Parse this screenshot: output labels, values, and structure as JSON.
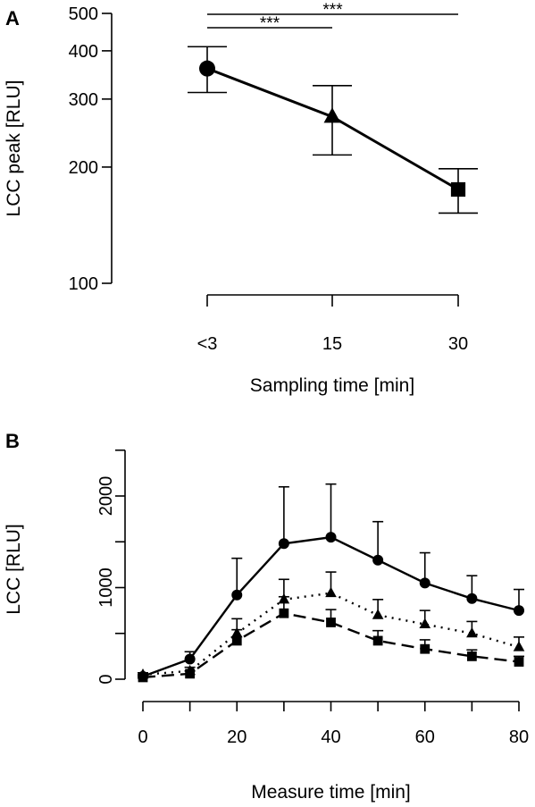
{
  "chart_data": [
    {
      "panel": "A",
      "type": "line",
      "xlabel": "Sampling time [min]",
      "ylabel": "LCC peak [RLU]",
      "yscale": "log",
      "ylim": [
        100,
        500
      ],
      "yticks": [
        100,
        200,
        300,
        400,
        500
      ],
      "categories": [
        "<3",
        "15",
        "30"
      ],
      "values": [
        360,
        270,
        175
      ],
      "error_upper": [
        410,
        325,
        198
      ],
      "error_lower": [
        312,
        215,
        152
      ],
      "markers": [
        "circle",
        "triangle",
        "square"
      ],
      "significance": [
        {
          "from": "<3",
          "to": "15",
          "label": "***"
        },
        {
          "from": "<3",
          "to": "30",
          "label": "***"
        }
      ]
    },
    {
      "panel": "B",
      "type": "line",
      "xlabel": "Measure time [min]",
      "ylabel": "LCC [RLU]",
      "xlim": [
        0,
        80
      ],
      "ylim": [
        0,
        2500
      ],
      "xticks": [
        0,
        20,
        40,
        60,
        80
      ],
      "yticks": [
        0,
        1000,
        2000
      ],
      "x": [
        0,
        10,
        20,
        30,
        40,
        50,
        60,
        70,
        80
      ],
      "series": [
        {
          "marker": "circle",
          "line": "solid",
          "values": [
            30,
            220,
            920,
            1480,
            1550,
            1300,
            1050,
            880,
            750
          ],
          "error": [
            20,
            80,
            400,
            620,
            580,
            420,
            330,
            250,
            230
          ]
        },
        {
          "marker": "triangle",
          "line": "dotted",
          "values": [
            50,
            90,
            500,
            870,
            940,
            700,
            600,
            500,
            350
          ],
          "error": [
            20,
            40,
            160,
            220,
            230,
            170,
            150,
            130,
            110
          ]
        },
        {
          "marker": "square",
          "line": "dashed",
          "values": [
            20,
            60,
            420,
            720,
            620,
            420,
            330,
            250,
            190
          ],
          "error": [
            15,
            30,
            120,
            180,
            140,
            110,
            100,
            70,
            60
          ]
        }
      ]
    }
  ]
}
